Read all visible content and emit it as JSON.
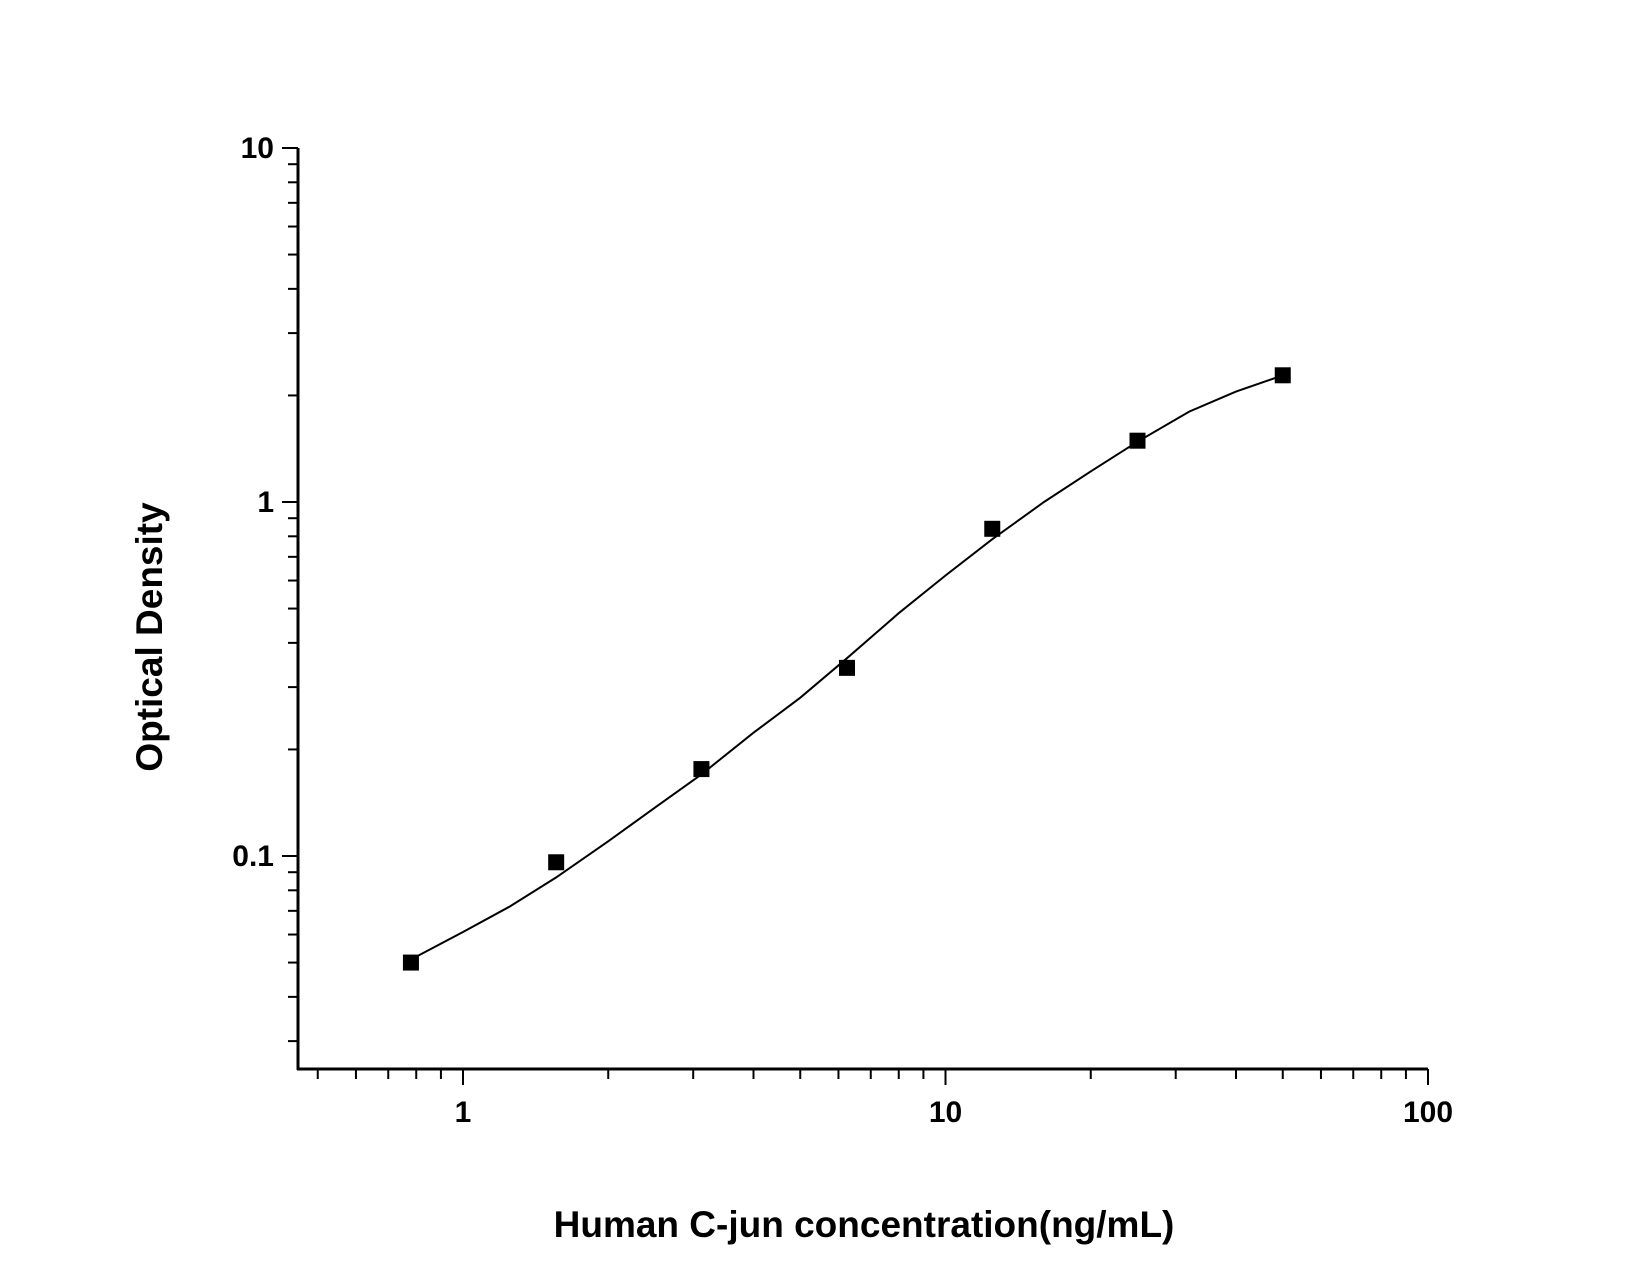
{
  "chart_data": {
    "type": "scatter",
    "title": "",
    "xlabel": "Human C-jun concentration(ng/mL)",
    "ylabel": "Optical Density",
    "x_scale": "log",
    "y_scale": "log",
    "xlim": [
      0.5,
      100
    ],
    "ylim": [
      0.03,
      10
    ],
    "x_ticks": [
      {
        "value": 1,
        "label": "1"
      },
      {
        "value": 10,
        "label": "10"
      },
      {
        "value": 100,
        "label": "100"
      }
    ],
    "y_ticks": [
      {
        "value": 0.1,
        "label": "0.1"
      },
      {
        "value": 1,
        "label": "1"
      },
      {
        "value": 10,
        "label": "10"
      }
    ],
    "grid": false,
    "legend": "none",
    "series": [
      {
        "type": "scatter",
        "marker": "square",
        "color": "#000000",
        "x": [
          0.78,
          1.56,
          3.12,
          6.25,
          12.5,
          25,
          50
        ],
        "y": [
          0.05,
          0.096,
          0.176,
          0.34,
          0.84,
          1.49,
          2.28
        ]
      },
      {
        "type": "line",
        "color": "#000000",
        "x": [
          0.78,
          1.0,
          1.25,
          1.56,
          2.0,
          2.5,
          3.12,
          4.0,
          5.0,
          6.25,
          8.0,
          10.0,
          12.5,
          16.0,
          20.0,
          25.0,
          32.0,
          40.0,
          50.0
        ],
        "y": [
          0.051,
          0.061,
          0.072,
          0.087,
          0.11,
          0.137,
          0.17,
          0.223,
          0.28,
          0.362,
          0.485,
          0.62,
          0.785,
          1.0,
          1.22,
          1.48,
          1.8,
          2.05,
          2.28
        ]
      }
    ]
  }
}
